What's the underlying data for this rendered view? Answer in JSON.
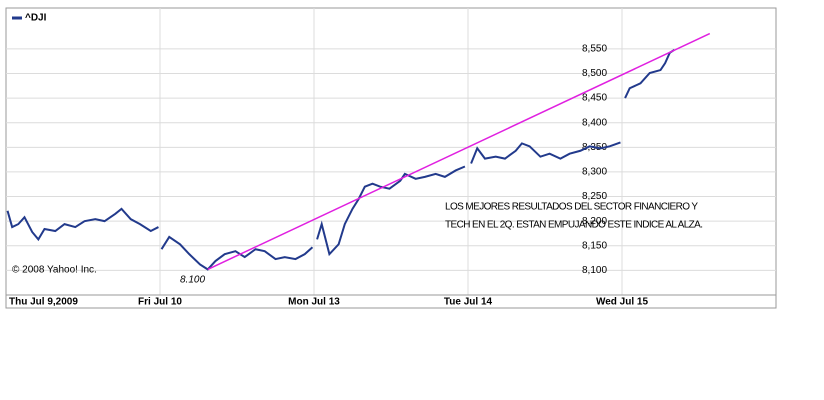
{
  "chart_data": {
    "type": "line",
    "x": [
      0.01,
      0.04,
      0.08,
      0.12,
      0.17,
      0.21,
      0.25,
      0.32,
      0.38,
      0.45,
      0.51,
      0.58,
      0.64,
      0.71,
      0.75,
      0.81,
      0.87,
      0.94,
      0.99,
      null,
      1.01,
      1.06,
      1.13,
      1.19,
      1.26,
      1.31,
      1.36,
      1.42,
      1.49,
      1.55,
      1.62,
      1.68,
      1.75,
      1.81,
      1.88,
      1.94,
      1.99,
      null,
      2.02,
      2.05,
      2.1,
      2.16,
      2.2,
      2.25,
      2.29,
      2.33,
      2.38,
      2.43,
      2.49,
      2.56,
      2.59,
      2.66,
      2.72,
      2.79,
      2.85,
      2.92,
      2.98,
      null,
      3.02,
      3.06,
      3.11,
      3.18,
      3.24,
      3.31,
      3.35,
      3.4,
      3.47,
      3.53,
      3.6,
      3.66,
      3.73,
      3.79,
      3.86,
      3.92,
      3.99,
      null,
      4.02,
      4.05,
      4.12,
      4.18,
      4.25,
      4.28,
      4.31,
      4.34
    ],
    "series": [
      {
        "name": "^DJI",
        "color": "#223a8c",
        "values": [
          8221,
          8188,
          8194,
          8208,
          8178,
          8163,
          8184,
          8180,
          8194,
          8188,
          8200,
          8204,
          8200,
          8215,
          8225,
          8204,
          8194,
          8180,
          8188,
          null,
          8143,
          8168,
          8153,
          8133,
          8112,
          8102,
          8119,
          8133,
          8139,
          8127,
          8143,
          8139,
          8123,
          8127,
          8123,
          8133,
          8147,
          null,
          8163,
          8194,
          8133,
          8153,
          8194,
          8225,
          8245,
          8270,
          8276,
          8270,
          8266,
          8282,
          8296,
          8286,
          8290,
          8296,
          8290,
          8303,
          8311,
          null,
          8317,
          8348,
          8327,
          8331,
          8327,
          8343,
          8358,
          8352,
          8331,
          8337,
          8327,
          8337,
          8343,
          8352,
          8348,
          8352,
          8360,
          null,
          8450,
          8470,
          8480,
          8501,
          8507,
          8521,
          8542,
          8548
        ]
      }
    ],
    "trendline": {
      "x": [
        1.31,
        4.57
      ],
      "values": [
        8102,
        8581
      ],
      "color": "#e020e0"
    },
    "xlim": [
      0,
      5
    ],
    "xticks": [
      {
        "value": 0,
        "label": "Thu Jul 9,2009"
      },
      {
        "value": 1,
        "label": "Fri Jul 10"
      },
      {
        "value": 2,
        "label": "Mon Jul 13"
      },
      {
        "value": 3,
        "label": "Tue Jul 14"
      },
      {
        "value": 4,
        "label": "Wed Jul 15"
      }
    ],
    "ylim": [
      8050,
      8633
    ],
    "yticks": [
      {
        "value": 8100,
        "label": "8,100"
      },
      {
        "value": 8150,
        "label": "8,150"
      },
      {
        "value": 8200,
        "label": "8,200"
      },
      {
        "value": 8250,
        "label": "8,250"
      },
      {
        "value": 8300,
        "label": "8,300"
      },
      {
        "value": 8350,
        "label": "8,350"
      },
      {
        "value": 8400,
        "label": "8,400"
      },
      {
        "value": 8450,
        "label": "8,450"
      },
      {
        "value": 8500,
        "label": "8,500"
      },
      {
        "value": 8550,
        "label": "8,550"
      }
    ],
    "grid": true,
    "low_label": "8.100",
    "annotation": [
      "LOS MEJORES RESULTADOS DEL SECTOR FINANCIERO Y",
      "TECH EN EL 2Q. ESTAN EMPUJANDO ESTE INDICE AL ALZA."
    ],
    "copyright": "© 2008 Yahoo! Inc."
  }
}
